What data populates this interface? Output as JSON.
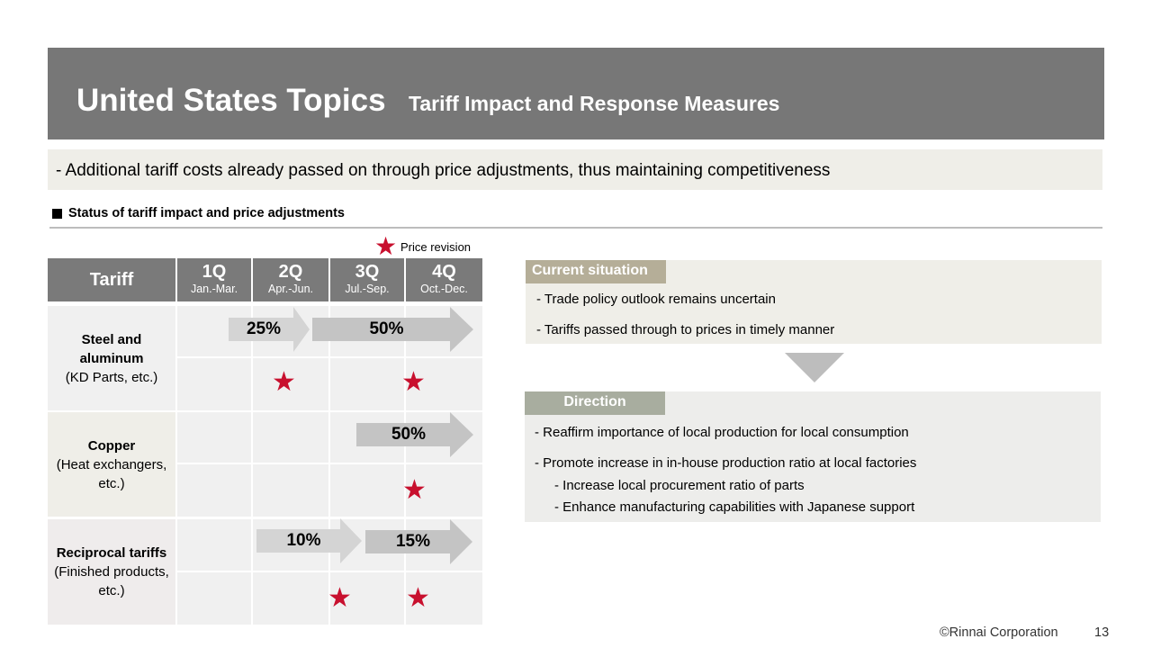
{
  "header": {
    "title": "United States Topics",
    "subtitle": "Tariff Impact and Response Measures"
  },
  "summary": "- Additional tariff costs already passed on through price adjustments, thus maintaining competitiveness",
  "section_heading": "Status of tariff impact and price adjustments",
  "legend": {
    "label": "Price revision",
    "icon": "star-icon",
    "color": "#c8102e"
  },
  "table": {
    "header": {
      "tariff": "Tariff",
      "quarters": [
        {
          "q": "1Q",
          "months": "Jan.-Mar."
        },
        {
          "q": "2Q",
          "months": "Apr.-Jun."
        },
        {
          "q": "3Q",
          "months": "Jul.-Sep."
        },
        {
          "q": "4Q",
          "months": "Oct.-Dec."
        }
      ]
    },
    "rows": [
      {
        "name": "Steel and aluminum",
        "detail": "(KD Parts, etc.)",
        "arrows": [
          "25%",
          "50%"
        ],
        "revisions": [
          "2Q",
          "4Q"
        ]
      },
      {
        "name": "Copper",
        "detail": "(Heat exchangers, etc.)",
        "arrows": [
          "50%"
        ],
        "revisions": [
          "4Q"
        ]
      },
      {
        "name": "Reciprocal tariffs",
        "detail": "(Finished products, etc.)",
        "arrows": [
          "10%",
          "15%"
        ],
        "revisions": [
          "3Q",
          "4Q"
        ]
      }
    ]
  },
  "current_situation": {
    "tag": "Current situation",
    "items": [
      "- Trade policy outlook remains uncertain",
      "- Tariffs passed through to prices in timely manner"
    ]
  },
  "direction": {
    "tag": "Direction",
    "items": [
      "- Reaffirm importance of local production for local consumption",
      "- Promote increase in in-house production ratio at local factories"
    ],
    "subitems": [
      "- Increase local procurement ratio of parts",
      "- Enhance manufacturing capabilities with Japanese support"
    ]
  },
  "footer": {
    "copyright": "©Rinnai Corporation",
    "page": "13"
  },
  "colors": {
    "header_band": "#777777",
    "table_header": "#7a7a7a",
    "star": "#c8102e",
    "arrow": "#c4c4c4"
  }
}
